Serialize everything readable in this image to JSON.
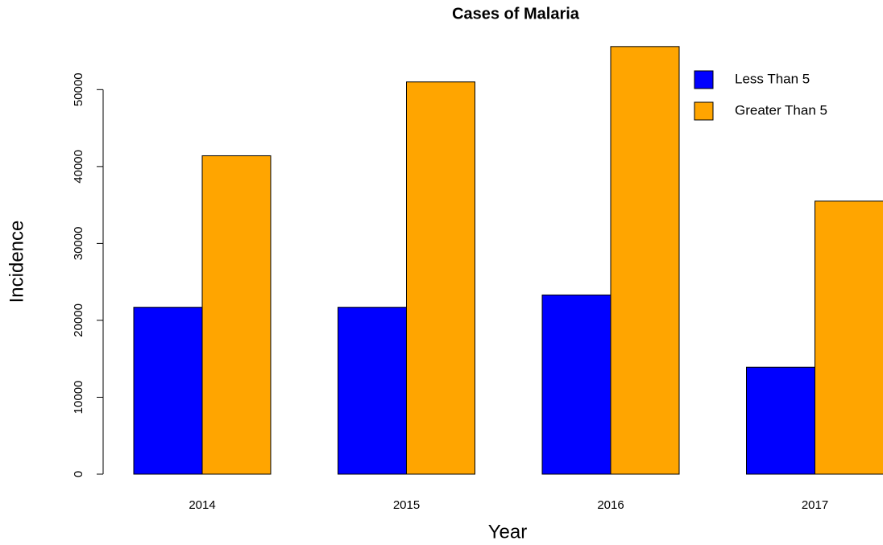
{
  "chart_data": {
    "type": "bar",
    "title": "Cases of Malaria",
    "x_label": "Year",
    "y_label": "Incidence",
    "categories": [
      "2014",
      "2015",
      "2016",
      "2017"
    ],
    "series": [
      {
        "name": "Less Than 5",
        "color": "#0000ff",
        "values": [
          21700,
          21700,
          23300,
          13900
        ]
      },
      {
        "name": "Greater Than 5",
        "color": "#ffa500",
        "values": [
          41400,
          51000,
          55600,
          35500
        ]
      }
    ],
    "ylim": [
      0,
      56000
    ],
    "yticks": [
      0,
      10000,
      20000,
      30000,
      40000,
      50000
    ],
    "legend": "topright",
    "grid": false
  }
}
